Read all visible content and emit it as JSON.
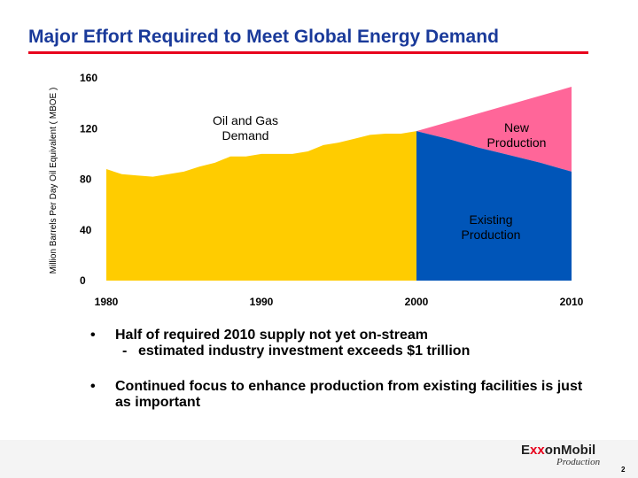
{
  "slide": {
    "title": "Major Effort Required to Meet Global Energy Demand",
    "page_number": "2"
  },
  "bullets": [
    {
      "text": "Half of required 2010 supply not yet on-stream",
      "sub": "estimated industry investment exceeds $1 trillion"
    },
    {
      "text": "Continued focus to enhance production from existing facilities is just as important"
    }
  ],
  "logo": {
    "brand_prefix": "E",
    "brand_xx": "xx",
    "brand_suffix": "onMobil",
    "subtitle": "Production"
  },
  "colors": {
    "title": "#1a3a9a",
    "rule": "#e8001c",
    "demand": "#ffcc00",
    "existing": "#0055b8",
    "new": "#ff6699"
  },
  "chart_data": {
    "type": "area",
    "ylabel": "Million Barrels Per Day Oil Equivalent ( MBOE )",
    "xlabel": "",
    "xlim": [
      1980,
      2010
    ],
    "ylim": [
      0,
      160
    ],
    "x_ticks": [
      "1980",
      "1990",
      "2000",
      "2010"
    ],
    "y_ticks": [
      "0",
      "40",
      "80",
      "120",
      "160"
    ],
    "series": [
      {
        "name": "Oil and Gas Demand",
        "x": [
          1980,
          1981,
          1982,
          1983,
          1984,
          1985,
          1986,
          1987,
          1988,
          1989,
          1990,
          1991,
          1992,
          1993,
          1994,
          1995,
          1996,
          1997,
          1998,
          1999,
          2000
        ],
        "values": [
          88,
          84,
          83,
          82,
          84,
          86,
          90,
          93,
          98,
          98,
          100,
          100,
          100,
          102,
          107,
          109,
          112,
          115,
          116,
          116,
          118
        ]
      },
      {
        "name": "Existing Production",
        "x": [
          2000,
          2002,
          2004,
          2006,
          2008,
          2010
        ],
        "values": [
          118,
          112,
          105,
          99,
          93,
          86
        ]
      },
      {
        "name": "New Production",
        "x": [
          2000,
          2010
        ],
        "values": [
          118,
          153
        ]
      }
    ],
    "annotations": {
      "demand": [
        "Oil and Gas",
        "Demand"
      ],
      "new": [
        "New",
        "Production"
      ],
      "existing": [
        "Existing",
        "Production"
      ]
    }
  }
}
